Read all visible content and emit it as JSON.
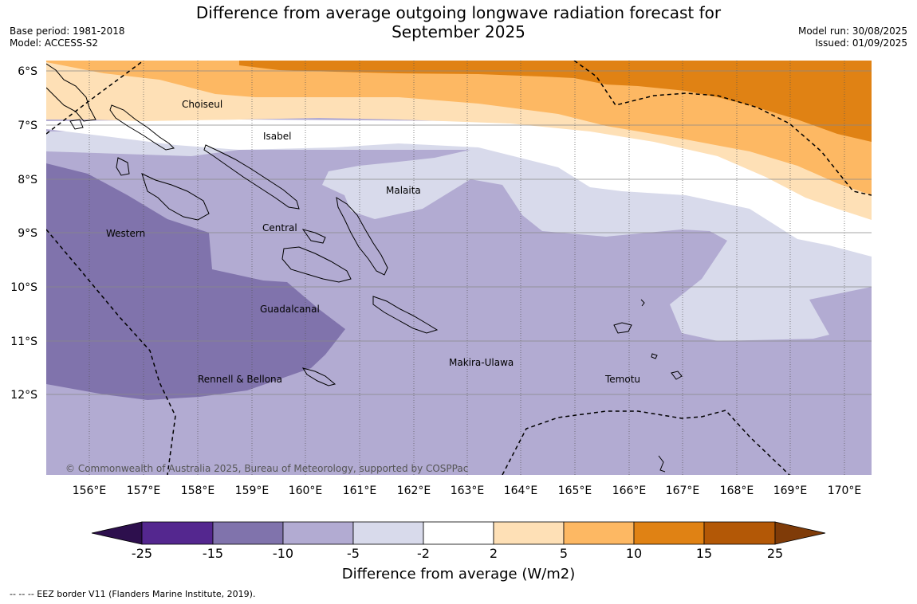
{
  "title": {
    "line1": "Difference from average outgoing longwave radiation forecast for",
    "line2": "September 2025"
  },
  "meta_left": {
    "base_period": "Base period: 1981-2018",
    "model": "Model: ACCESS-S2"
  },
  "meta_right": {
    "model_run": "Model run: 30/08/2025",
    "issued": "Issued: 01/09/2025"
  },
  "map": {
    "lat_labels": [
      "6°S",
      "7°S",
      "8°S",
      "9°S",
      "10°S",
      "11°S",
      "12°S"
    ],
    "lon_labels": [
      "156°E",
      "157°E",
      "158°E",
      "159°E",
      "160°E",
      "161°E",
      "162°E",
      "163°E",
      "164°E",
      "165°E",
      "166°E",
      "167°E",
      "168°E",
      "169°E",
      "170°E"
    ],
    "regions": [
      "Choiseul",
      "Isabel",
      "Malaita",
      "Western",
      "Central",
      "Guadalcanal",
      "Rennell & Bellona",
      "Makira-Ulawa",
      "Temotu"
    ],
    "copyright": "© Commonwealth of Australia 2025, Bureau of Meteorology, supported by COSPPac"
  },
  "colorbar": {
    "ticks": [
      "-25",
      "-15",
      "-10",
      "-5",
      "-2",
      "2",
      "5",
      "10",
      "15",
      "25"
    ],
    "colors": [
      "#2d0f4d",
      "#54278f",
      "#8073ac",
      "#b2abd2",
      "#d8daeb",
      "#ffffff",
      "#fee0b6",
      "#fdb863",
      "#e08214",
      "#b35806",
      "#7f3b08"
    ],
    "label": "Difference from average (W/m2)"
  },
  "footnote": "-- -- -- EEZ border V11 (Flanders Marine Institute, 2019)."
}
